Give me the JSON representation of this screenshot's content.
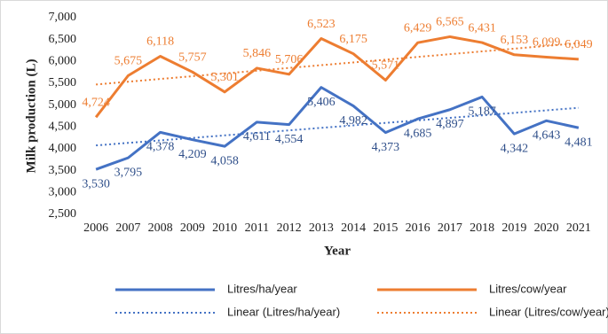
{
  "chart_data": {
    "type": "line",
    "x_label": "Year",
    "y_label": "Milk production (L)",
    "categories": [
      "2006",
      "2007",
      "2008",
      "2009",
      "2010",
      "2011",
      "2012",
      "2013",
      "2014",
      "2015",
      "2016",
      "2017",
      "2018",
      "2019",
      "2020",
      "2021"
    ],
    "ylim": [
      2500,
      7000
    ],
    "yticks": [
      {
        "value": 2500,
        "label": "2,500"
      },
      {
        "value": 3000,
        "label": "3,000"
      },
      {
        "value": 3500,
        "label": "3,500"
      },
      {
        "value": 4000,
        "label": "4,000"
      },
      {
        "value": 4500,
        "label": "4,500"
      },
      {
        "value": 5000,
        "label": "5,000"
      },
      {
        "value": 5500,
        "label": "5,500"
      },
      {
        "value": 6000,
        "label": "6,000"
      },
      {
        "value": 6500,
        "label": "6,500"
      },
      {
        "value": 7000,
        "label": "7,000"
      }
    ],
    "grid": false,
    "series": [
      {
        "name": "Litres/ha/year",
        "color": "#4472c4",
        "style": "solid",
        "label_position": "below",
        "values": [
          3530,
          3795,
          4378,
          4209,
          4058,
          4611,
          4554,
          5406,
          4982,
          4373,
          4685,
          4897,
          5187,
          4342,
          4643,
          4481
        ],
        "value_labels": [
          "3,530",
          "3,795",
          "4,378",
          "4,209",
          "4,058",
          "4,611",
          "4,554",
          "5,406",
          "4,982",
          "4,373",
          "4,685",
          "4,897",
          "5,187",
          "4,342",
          "4,643",
          "4,481"
        ]
      },
      {
        "name": "Litres/cow/year",
        "color": "#ed7d31",
        "style": "solid",
        "label_position": "above",
        "values": [
          4724,
          5675,
          6118,
          5757,
          5301,
          5846,
          5706,
          6523,
          6175,
          5571,
          6429,
          6565,
          6431,
          6153,
          6099,
          6049
        ],
        "value_labels": [
          "4,724",
          "5,675",
          "6,118",
          "5,757",
          "5,301",
          "5,846",
          "5,706",
          "6,523",
          "6,175",
          "5,571",
          "6,429",
          "6,565",
          "6,431",
          "6,153",
          "6,099",
          "6,049"
        ]
      },
      {
        "name": "Linear (Litres/ha/year)",
        "color": "#4472c4",
        "style": "dotted",
        "values": [
          4078,
          4136,
          4193,
          4250,
          4308,
          4365,
          4422,
          4480,
          4537,
          4594,
          4651,
          4709,
          4766,
          4823,
          4881,
          4938
        ]
      },
      {
        "name": "Linear (Litres/cow/year)",
        "color": "#ed7d31",
        "style": "dotted",
        "values": [
          5472,
          5536,
          5599,
          5662,
          5725,
          5788,
          5851,
          5914,
          5977,
          6040,
          6103,
          6166,
          6229,
          6292,
          6355,
          6418
        ]
      }
    ]
  }
}
